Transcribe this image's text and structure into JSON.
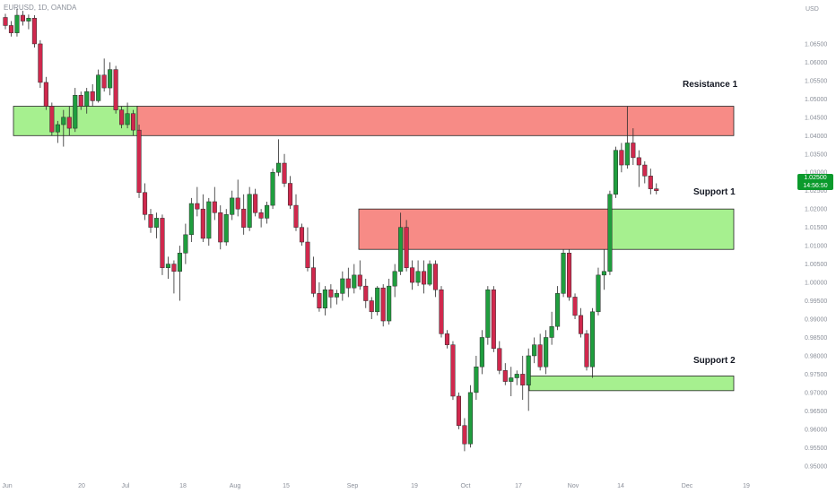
{
  "symbol_title": "EURUSD, 1D, OANDA",
  "currency": "USD",
  "last_price": "1.02500",
  "countdown": "14:56:50",
  "colors": {
    "up": "#1f9e3e",
    "down": "#d0284d",
    "resistance_zone": "#f78b86",
    "support_zone": "#a6f08f",
    "price_badge": "#0b9a2c"
  },
  "zones": [
    {
      "label": "Resistance 1",
      "kind": "resistance",
      "from": "Jun",
      "to": "Dec",
      "top": 1.048,
      "bottom": 1.04,
      "left_support_segment_end": "Jul"
    },
    {
      "label": "Support 1",
      "kind": "support",
      "from": "Sep",
      "to": "Dec",
      "top": 1.02,
      "bottom": 1.009,
      "left_resistance_segment_end": "Nov"
    },
    {
      "label": "Support 2",
      "kind": "support",
      "from": "Oct",
      "to": "Dec",
      "top": 0.9745,
      "bottom": 0.9705
    }
  ],
  "chart_data": {
    "type": "candlestick",
    "title": "",
    "ylabel": "USD",
    "ylim": [
      0.9475,
      1.075
    ],
    "y_ticks": [
      "1.06500",
      "1.06000",
      "1.05500",
      "1.05000",
      "1.04500",
      "1.04000",
      "1.03500",
      "1.03000",
      "1.02500",
      "1.02000",
      "1.01500",
      "1.01000",
      "1.00500",
      "1.00000",
      "0.99500",
      "0.99000",
      "0.98500",
      "0.98000",
      "0.97500",
      "0.97000",
      "0.96500",
      "0.96000",
      "0.95500",
      "0.95000"
    ],
    "x_ticks": [
      "Jun",
      "20",
      "Jul",
      "18",
      "Aug",
      "15",
      "Sep",
      "19",
      "Oct",
      "17",
      "Nov",
      "14",
      "Dec",
      "19"
    ],
    "candles": [
      [
        1.0722,
        1.0732,
        1.069,
        1.07
      ],
      [
        1.07,
        1.0712,
        1.067,
        1.068
      ],
      [
        1.068,
        1.0745,
        1.067,
        1.0728
      ],
      [
        1.0728,
        1.074,
        1.07,
        1.0712
      ],
      [
        1.0712,
        1.073,
        1.069,
        1.072
      ],
      [
        1.072,
        1.0728,
        1.064,
        1.065
      ],
      [
        1.065,
        1.066,
        1.053,
        1.0545
      ],
      [
        1.0545,
        1.056,
        1.047,
        1.048
      ],
      [
        1.048,
        1.049,
        1.04,
        1.041
      ],
      [
        1.041,
        1.044,
        1.038,
        1.043
      ],
      [
        1.043,
        1.047,
        1.037,
        1.045
      ],
      [
        1.045,
        1.048,
        1.04,
        1.042
      ],
      [
        1.042,
        1.053,
        1.041,
        1.051
      ],
      [
        1.051,
        1.052,
        1.047,
        1.048
      ],
      [
        1.048,
        1.053,
        1.046,
        1.052
      ],
      [
        1.052,
        1.054,
        1.048,
        1.0495
      ],
      [
        1.0495,
        1.058,
        1.049,
        1.0565
      ],
      [
        1.0565,
        1.061,
        1.052,
        1.053
      ],
      [
        1.053,
        1.06,
        1.051,
        1.058
      ],
      [
        1.058,
        1.059,
        1.046,
        1.047
      ],
      [
        1.047,
        1.048,
        1.042,
        1.043
      ],
      [
        1.043,
        1.049,
        1.042,
        1.046
      ],
      [
        1.046,
        1.047,
        1.04,
        1.0415
      ],
      [
        1.0415,
        1.043,
        1.023,
        1.0245
      ],
      [
        1.0245,
        1.027,
        1.017,
        1.0185
      ],
      [
        1.0185,
        1.02,
        1.0135,
        1.015
      ],
      [
        1.015,
        1.019,
        1.012,
        1.0175
      ],
      [
        1.0175,
        1.0185,
        1.002,
        1.004
      ],
      [
        1.004,
        1.007,
        1.001,
        1.005
      ],
      [
        1.005,
        1.006,
        0.997,
        1.003
      ],
      [
        1.003,
        1.01,
        0.995,
        1.008
      ],
      [
        1.008,
        1.016,
        1.005,
        1.013
      ],
      [
        1.013,
        1.023,
        1.011,
        1.0215
      ],
      [
        1.0215,
        1.026,
        1.018,
        1.02
      ],
      [
        1.02,
        1.024,
        1.011,
        1.012
      ],
      [
        1.012,
        1.023,
        1.01,
        1.022
      ],
      [
        1.022,
        1.026,
        1.017,
        1.019
      ],
      [
        1.019,
        1.021,
        1.009,
        1.011
      ],
      [
        1.011,
        1.02,
        1.01,
        1.0185
      ],
      [
        1.0185,
        1.025,
        1.017,
        1.023
      ],
      [
        1.023,
        1.028,
        1.018,
        1.02
      ],
      [
        1.02,
        1.024,
        1.013,
        1.015
      ],
      [
        1.015,
        1.026,
        1.014,
        1.024
      ],
      [
        1.024,
        1.0255,
        1.018,
        1.019
      ],
      [
        1.019,
        1.02,
        1.015,
        1.0175
      ],
      [
        1.0175,
        1.022,
        1.016,
        1.021
      ],
      [
        1.021,
        1.031,
        1.02,
        1.03
      ],
      [
        1.03,
        1.039,
        1.029,
        1.0325
      ],
      [
        1.0325,
        1.035,
        1.026,
        1.027
      ],
      [
        1.027,
        1.029,
        1.02,
        1.021
      ],
      [
        1.021,
        1.024,
        1.014,
        1.015
      ],
      [
        1.015,
        1.016,
        1.01,
        1.011
      ],
      [
        1.011,
        1.015,
        1.003,
        1.004
      ],
      [
        1.004,
        1.007,
        0.996,
        0.997
      ],
      [
        0.997,
        1.0,
        0.992,
        0.993
      ],
      [
        0.993,
        0.999,
        0.991,
        0.998
      ],
      [
        0.998,
        0.9995,
        0.993,
        0.996
      ],
      [
        0.996,
        0.998,
        0.994,
        0.997
      ],
      [
        0.997,
        1.003,
        0.995,
        1.001
      ],
      [
        1.001,
        1.004,
        0.996,
        0.9985
      ],
      [
        0.9985,
        1.005,
        0.997,
        1.002
      ],
      [
        1.002,
        1.006,
        0.998,
        0.999
      ],
      [
        0.999,
        1.001,
        0.993,
        0.995
      ],
      [
        0.995,
        0.996,
        0.99,
        0.992
      ],
      [
        0.992,
        0.999,
        0.991,
        0.9985
      ],
      [
        0.9985,
        0.9995,
        0.988,
        0.9895
      ],
      [
        0.9895,
        1.001,
        0.9885,
        0.999
      ],
      [
        0.999,
        1.005,
        0.996,
        1.003
      ],
      [
        1.003,
        1.019,
        1.002,
        1.015
      ],
      [
        1.015,
        1.017,
        1.003,
        1.004
      ],
      [
        1.004,
        1.006,
        0.998,
        1.0
      ],
      [
        1.0,
        1.006,
        0.999,
        1.003
      ],
      [
        1.003,
        1.006,
        0.997,
        0.9995
      ],
      [
        0.9995,
        1.006,
        0.999,
        1.005
      ],
      [
        1.005,
        1.006,
        0.996,
        0.998
      ],
      [
        0.998,
        0.999,
        0.985,
        0.986
      ],
      [
        0.986,
        0.987,
        0.982,
        0.983
      ],
      [
        0.983,
        0.984,
        0.968,
        0.969
      ],
      [
        0.969,
        0.97,
        0.96,
        0.961
      ],
      [
        0.961,
        0.963,
        0.954,
        0.956
      ],
      [
        0.956,
        0.972,
        0.955,
        0.97
      ],
      [
        0.97,
        0.98,
        0.968,
        0.977
      ],
      [
        0.977,
        0.987,
        0.975,
        0.985
      ],
      [
        0.985,
        0.999,
        0.983,
        0.998
      ],
      [
        0.998,
        0.999,
        0.981,
        0.982
      ],
      [
        0.982,
        0.984,
        0.975,
        0.976
      ],
      [
        0.976,
        0.978,
        0.972,
        0.973
      ],
      [
        0.973,
        0.977,
        0.969,
        0.974
      ],
      [
        0.974,
        0.976,
        0.972,
        0.975
      ],
      [
        0.975,
        0.98,
        0.968,
        0.972
      ],
      [
        0.972,
        0.982,
        0.965,
        0.98
      ],
      [
        0.98,
        0.985,
        0.978,
        0.983
      ],
      [
        0.983,
        0.986,
        0.976,
        0.977
      ],
      [
        0.977,
        0.987,
        0.975,
        0.985
      ],
      [
        0.985,
        0.992,
        0.983,
        0.988
      ],
      [
        0.988,
        0.999,
        0.987,
        0.997
      ],
      [
        0.997,
        1.009,
        0.996,
        1.008
      ],
      [
        1.008,
        1.009,
        0.995,
        0.996
      ],
      [
        0.996,
        0.997,
        0.99,
        0.991
      ],
      [
        0.991,
        0.993,
        0.985,
        0.986
      ],
      [
        0.986,
        0.987,
        0.976,
        0.977
      ],
      [
        0.977,
        0.993,
        0.974,
        0.992
      ],
      [
        0.992,
        1.004,
        0.991,
        1.002
      ],
      [
        1.002,
        1.009,
        0.998,
        1.003
      ],
      [
        1.003,
        1.025,
        1.002,
        1.024
      ],
      [
        1.024,
        1.037,
        1.023,
        1.036
      ],
      [
        1.036,
        1.038,
        1.03,
        1.032
      ],
      [
        1.032,
        1.048,
        1.031,
        1.038
      ],
      [
        1.038,
        1.042,
        1.032,
        1.034
      ],
      [
        1.034,
        1.036,
        1.026,
        1.032
      ],
      [
        1.032,
        1.033,
        1.027,
        1.029
      ],
      [
        1.029,
        1.031,
        1.024,
        1.0255
      ],
      [
        1.0255,
        1.027,
        1.024,
        1.025
      ]
    ]
  }
}
